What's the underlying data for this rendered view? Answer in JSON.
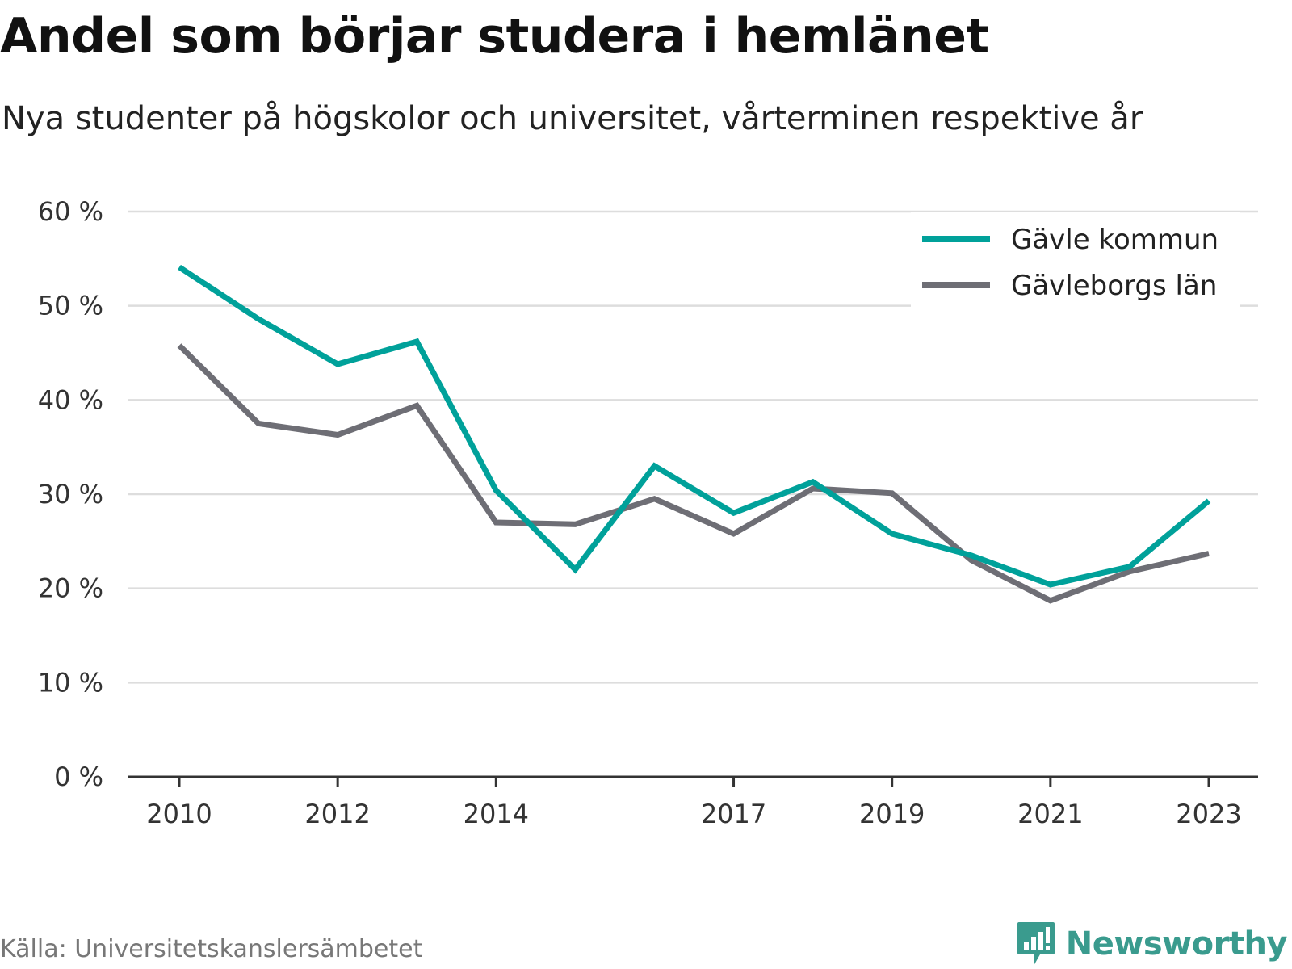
{
  "title": "Andel som börjar studera i hemlänet",
  "subtitle": "Nya studenter på högskolor och universitet, vårterminen respektive år",
  "source": "Källa: Universitetskanslersämbetet",
  "brand": {
    "name": "Newsworthy",
    "icon": "newsworthy-logo-icon",
    "color": "#3a9b8e"
  },
  "chart_data": {
    "type": "line",
    "x": [
      2010,
      2011,
      2012,
      2013,
      2014,
      2015,
      2016,
      2017,
      2018,
      2019,
      2020,
      2021,
      2022,
      2023
    ],
    "x_ticks": [
      "2010",
      "2012",
      "2014",
      "2017",
      "2019",
      "2021",
      "2023"
    ],
    "x_tick_values": [
      2010,
      2012,
      2014,
      2017,
      2019,
      2021,
      2023
    ],
    "y_ticks": [
      "0 %",
      "10 %",
      "20 %",
      "30 %",
      "40 %",
      "50 %",
      "60 %"
    ],
    "y_tick_values": [
      0,
      10,
      20,
      30,
      40,
      50,
      60
    ],
    "ylim": [
      0,
      60
    ],
    "xlim": [
      2010,
      2023
    ],
    "grid": true,
    "legend_position": "top-right",
    "series": [
      {
        "name": "Gävle kommun",
        "color": "#00a19a",
        "values": [
          54.1,
          48.6,
          43.8,
          46.2,
          30.4,
          22.0,
          33.0,
          28.0,
          31.3,
          25.8,
          23.5,
          20.4,
          22.3,
          29.3
        ]
      },
      {
        "name": "Gävleborgs län",
        "color": "#6e6e75",
        "values": [
          45.8,
          37.5,
          36.3,
          39.4,
          27.0,
          26.8,
          29.5,
          25.8,
          30.6,
          30.1,
          23.0,
          18.7,
          21.8,
          23.7
        ]
      }
    ]
  }
}
